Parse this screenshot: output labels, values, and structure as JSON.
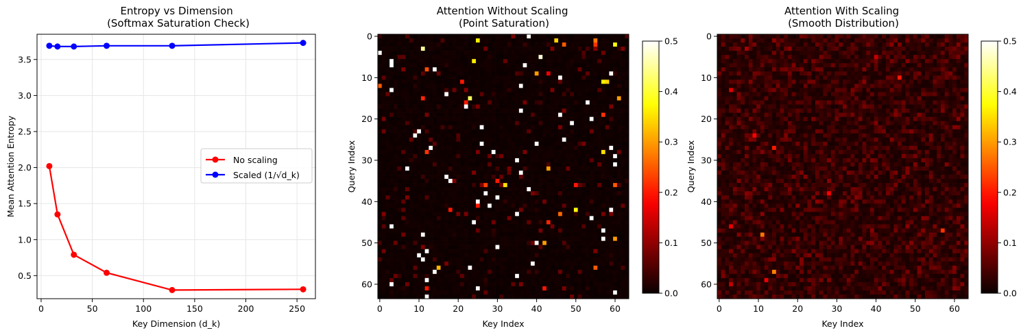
{
  "chart_data": [
    {
      "type": "line",
      "title": "Entropy vs Dimension\n(Softmax Saturation Check)",
      "xlabel": "Key Dimension (d_k)",
      "ylabel": "Mean Attention Entropy",
      "xlim": [
        -4,
        268
      ],
      "ylim": [
        0.18,
        3.85
      ],
      "xticks": [
        0,
        50,
        100,
        150,
        200,
        250
      ],
      "yticks": [
        0.5,
        1.0,
        1.5,
        2.0,
        2.5,
        3.0,
        3.5
      ],
      "grid": true,
      "legend_position": "center-right",
      "x": [
        8,
        16,
        32,
        64,
        128,
        256
      ],
      "series": [
        {
          "name": "No scaling",
          "color": "#ff0000",
          "values": [
            2.02,
            1.35,
            0.79,
            0.54,
            0.3,
            0.31
          ]
        },
        {
          "name": "Scaled (1/√d_k)",
          "color": "#0000ff",
          "values": [
            3.69,
            3.68,
            3.68,
            3.69,
            3.69,
            3.73
          ]
        }
      ]
    },
    {
      "type": "heatmap",
      "title": "Attention Without Scaling\n(Point Saturation)",
      "xlabel": "Key Index",
      "ylabel": "Query Index",
      "rows": 64,
      "cols": 64,
      "xticks": [
        0,
        10,
        20,
        30,
        40,
        50,
        60
      ],
      "yticks": [
        0,
        10,
        20,
        30,
        40,
        50,
        60
      ],
      "colormap": "hot",
      "vmin": 0.0,
      "vmax": 0.5,
      "colorbar_ticks": [
        "0.0",
        "0.1",
        "0.2",
        "0.3",
        "0.4",
        "0.5"
      ],
      "background_level": 0.004,
      "notes": "Sparse saturated points; listed as [query, key, value]",
      "points": [
        [
          0,
          38,
          0.5
        ],
        [
          1,
          25,
          0.36
        ],
        [
          1,
          45,
          0.34
        ],
        [
          1,
          55,
          0.27
        ],
        [
          2,
          47,
          0.25
        ],
        [
          2,
          55,
          0.22
        ],
        [
          2,
          60,
          0.38
        ],
        [
          3,
          11,
          0.45
        ],
        [
          4,
          0,
          0.5
        ],
        [
          5,
          41,
          0.48
        ],
        [
          6,
          3,
          0.5
        ],
        [
          6,
          24,
          0.36
        ],
        [
          7,
          3,
          0.5
        ],
        [
          7,
          37,
          0.5
        ],
        [
          8,
          12,
          0.24
        ],
        [
          8,
          14,
          0.5
        ],
        [
          9,
          40,
          0.3
        ],
        [
          9,
          43,
          0.17
        ],
        [
          9,
          59,
          0.5
        ],
        [
          10,
          46,
          0.5
        ],
        [
          11,
          57,
          0.36
        ],
        [
          11,
          58,
          0.34
        ],
        [
          11,
          21,
          0.2
        ],
        [
          12,
          0,
          0.25
        ],
        [
          12,
          36,
          0.5
        ],
        [
          13,
          3,
          0.5
        ],
        [
          14,
          17,
          0.5
        ],
        [
          15,
          11,
          0.21
        ],
        [
          15,
          23,
          0.42
        ],
        [
          15,
          61,
          0.3
        ],
        [
          16,
          22,
          0.2
        ],
        [
          16,
          53,
          0.5
        ],
        [
          17,
          22,
          0.5
        ],
        [
          18,
          36,
          0.5
        ],
        [
          19,
          46,
          0.5
        ],
        [
          19,
          57,
          0.22
        ],
        [
          20,
          54,
          0.5
        ],
        [
          21,
          49,
          0.5
        ],
        [
          22,
          26,
          0.5
        ],
        [
          23,
          10,
          0.5
        ],
        [
          24,
          9,
          0.5
        ],
        [
          25,
          47,
          0.5
        ],
        [
          26,
          26,
          0.5
        ],
        [
          26,
          40,
          0.5
        ],
        [
          27,
          13,
          0.5
        ],
        [
          27,
          59,
          0.5
        ],
        [
          28,
          12,
          0.22
        ],
        [
          28,
          29,
          0.5
        ],
        [
          28,
          57,
          0.35
        ],
        [
          29,
          60,
          0.5
        ],
        [
          30,
          35,
          0.5
        ],
        [
          31,
          60,
          0.5
        ],
        [
          32,
          7,
          0.5
        ],
        [
          32,
          43,
          0.3
        ],
        [
          33,
          36,
          0.5
        ],
        [
          34,
          17,
          0.5
        ],
        [
          35,
          18,
          0.5
        ],
        [
          35,
          30,
          0.2
        ],
        [
          36,
          27,
          0.23
        ],
        [
          36,
          32,
          0.35
        ],
        [
          36,
          50,
          0.2
        ],
        [
          36,
          60,
          0.25
        ],
        [
          37,
          38,
          0.5
        ],
        [
          38,
          27,
          0.5
        ],
        [
          39,
          30,
          0.5
        ],
        [
          40,
          25,
          0.5
        ],
        [
          41,
          25,
          0.2
        ],
        [
          41,
          28,
          0.5
        ],
        [
          42,
          18,
          0.2
        ],
        [
          42,
          50,
          0.38
        ],
        [
          42,
          59,
          0.5
        ],
        [
          43,
          35,
          0.5
        ],
        [
          43,
          46,
          0.26
        ],
        [
          44,
          54,
          0.5
        ],
        [
          45,
          24,
          0.5
        ],
        [
          45,
          43,
          0.21
        ],
        [
          46,
          3,
          0.5
        ],
        [
          47,
          57,
          0.5
        ],
        [
          48,
          11,
          0.5
        ],
        [
          49,
          57,
          0.5
        ],
        [
          49,
          60,
          0.3
        ],
        [
          50,
          40,
          0.5
        ],
        [
          50,
          42,
          0.3
        ],
        [
          51,
          30,
          0.5
        ],
        [
          52,
          12,
          0.5
        ],
        [
          53,
          10,
          0.5
        ],
        [
          54,
          11,
          0.5
        ],
        [
          55,
          39,
          0.5
        ],
        [
          56,
          15,
          0.32
        ],
        [
          56,
          23,
          0.5
        ],
        [
          56,
          55,
          0.25
        ],
        [
          57,
          14,
          0.5
        ],
        [
          58,
          35,
          0.5
        ],
        [
          59,
          12,
          0.5
        ],
        [
          60,
          3,
          0.5
        ],
        [
          61,
          12,
          0.2
        ],
        [
          61,
          25,
          0.5
        ],
        [
          61,
          42,
          0.2
        ],
        [
          62,
          60,
          0.5
        ],
        [
          63,
          12,
          0.5
        ]
      ]
    },
    {
      "type": "heatmap",
      "title": "Attention With Scaling\n(Smooth Distribution)",
      "xlabel": "Key Index",
      "ylabel": "Query Index",
      "rows": 64,
      "cols": 64,
      "xticks": [
        0,
        10,
        20,
        30,
        40,
        50,
        60
      ],
      "yticks": [
        0,
        10,
        20,
        30,
        40,
        50,
        60
      ],
      "colormap": "hot",
      "vmin": 0.0,
      "vmax": 0.5,
      "colorbar_ticks": [
        "0.0",
        "0.1",
        "0.2",
        "0.3",
        "0.4",
        "0.5"
      ],
      "background_level": 0.035,
      "notes": "Diffuse low values with a few brighter cells; listed as [query, key, value]",
      "points": [
        [
          3,
          7,
          0.12
        ],
        [
          5,
          40,
          0.14
        ],
        [
          10,
          46,
          0.2
        ],
        [
          13,
          3,
          0.16
        ],
        [
          24,
          9,
          0.18
        ],
        [
          27,
          14,
          0.2
        ],
        [
          38,
          28,
          0.18
        ],
        [
          46,
          3,
          0.17
        ],
        [
          47,
          57,
          0.22
        ],
        [
          48,
          11,
          0.27
        ],
        [
          57,
          14,
          0.28
        ],
        [
          59,
          12,
          0.17
        ],
        [
          60,
          3,
          0.14
        ],
        [
          40,
          25,
          0.1
        ],
        [
          20,
          61,
          0.1
        ],
        [
          34,
          22,
          0.09
        ]
      ]
    }
  ]
}
